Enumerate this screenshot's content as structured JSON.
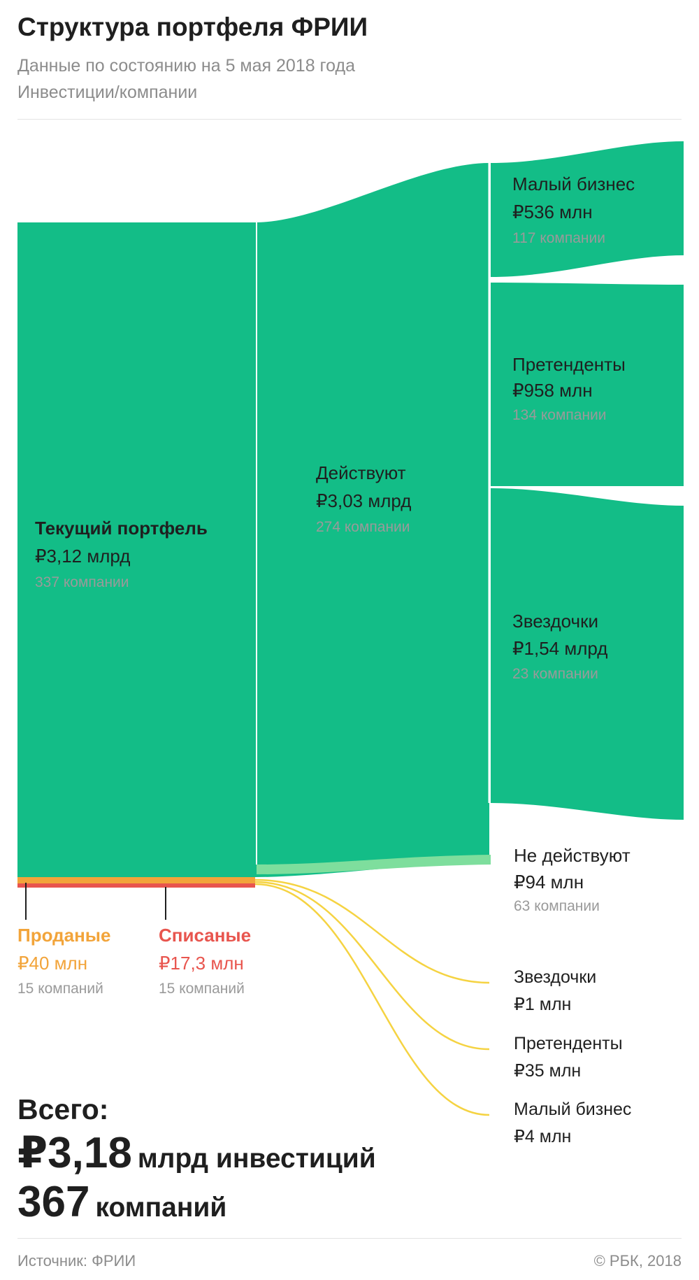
{
  "header": {
    "title": "Структура портфеля ФРИИ",
    "subtitle": "Данные по состоянию на 5 мая 2018 года",
    "unit_note": "Инвестиции/компании"
  },
  "colors": {
    "active": "#13bd87",
    "inactive": "#7ede9d",
    "sold": "#f2a43a",
    "written_off": "#e8554e",
    "minor_flow": "#f5d342"
  },
  "nodes": {
    "current": {
      "name": "Текущий портфель",
      "amount": "₽3,12 млрд",
      "count": "337 компании"
    },
    "active": {
      "name": "Действуют",
      "amount": "₽3,03 млрд",
      "count": "274 компании"
    },
    "small_biz": {
      "name": "Малый бизнес",
      "amount": "₽536 млн",
      "count": "117 компании"
    },
    "contenders": {
      "name": "Претенденты",
      "amount": "₽958 млн",
      "count": "134 компании"
    },
    "stars": {
      "name": "Звездочки",
      "amount": "₽1,54 млрд",
      "count": "23 компании"
    },
    "inactive": {
      "name": "Не действуют",
      "amount": "₽94 млн",
      "count": "63 компании"
    },
    "sold": {
      "name": "Проданые",
      "amount": "₽40 млн",
      "count": "15 компаний"
    },
    "written_off": {
      "name": "Списаные",
      "amount": "₽17,3 млн",
      "count": "15 компаний"
    },
    "exit_stars": {
      "name": "Звездочки",
      "amount": "₽1 млн"
    },
    "exit_contenders": {
      "name": "Претенденты",
      "amount": "₽35 млн"
    },
    "exit_small_biz": {
      "name": "Малый бизнес",
      "amount": "₽4 млн"
    }
  },
  "totals": {
    "label": "Всего:",
    "investments_value": "₽3,18",
    "investments_unit": "млрд инвестиций",
    "companies_value": "367",
    "companies_unit": "компаний"
  },
  "footer": {
    "source": "Источник: ФРИИ",
    "copyright": "© РБК, 2018"
  }
}
